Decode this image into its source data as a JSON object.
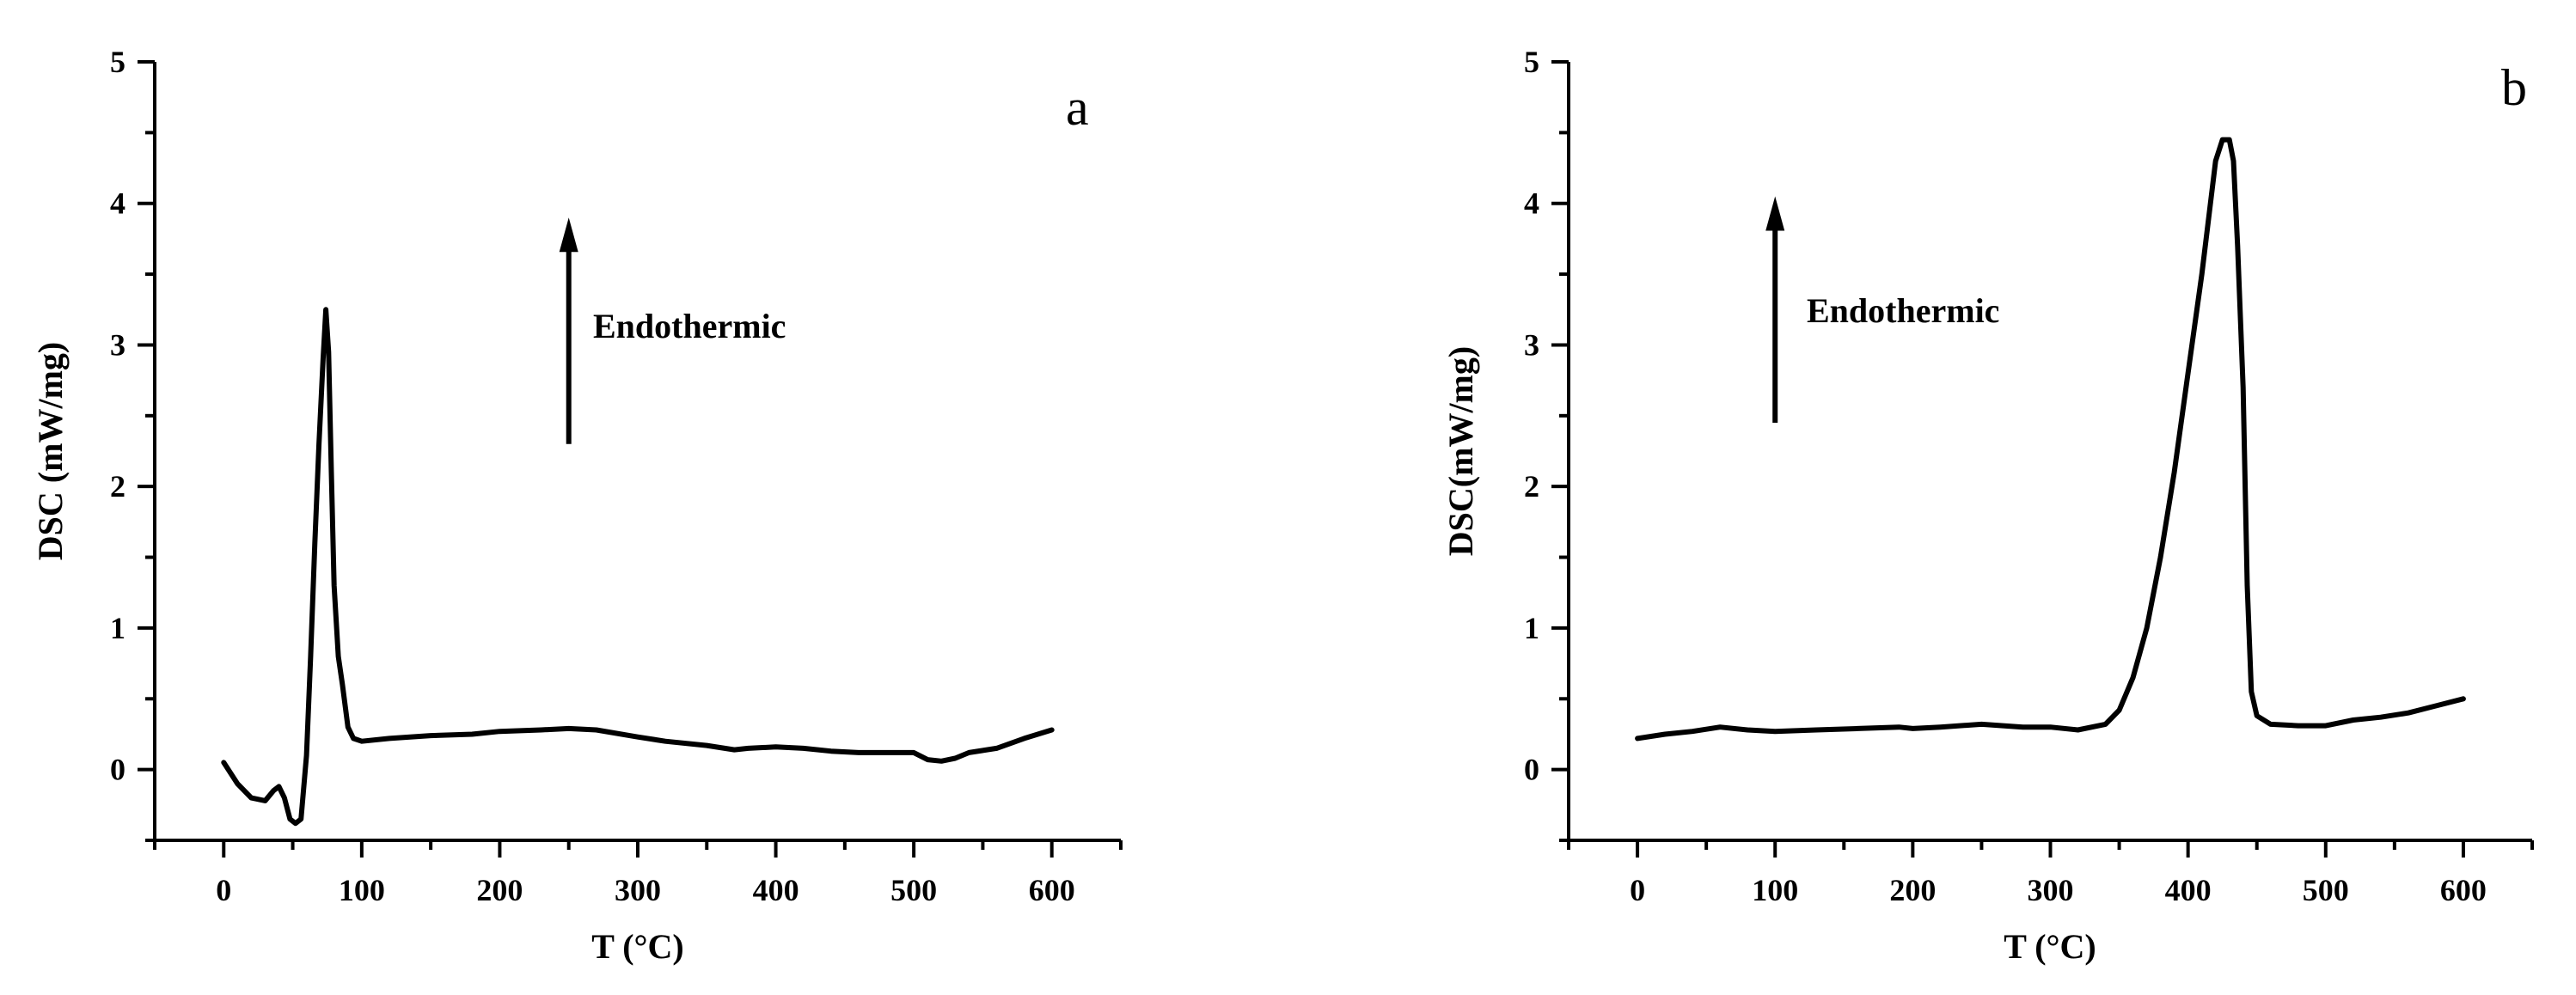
{
  "chart_data": [
    {
      "type": "line",
      "panel_label": "a",
      "xlabel": "T (°C)",
      "ylabel": "DSC (mW/mg)",
      "xlim": [
        -50,
        650
      ],
      "ylim": [
        -0.5,
        5
      ],
      "xticks": [
        0,
        100,
        200,
        300,
        400,
        500,
        600
      ],
      "yticks": [
        0,
        1,
        2,
        3,
        4,
        5
      ],
      "annotation": "Endothermic",
      "arrow": {
        "x": 250,
        "y_start": 2.3,
        "y_end": 3.9
      },
      "series": [
        {
          "x": [
            0,
            10,
            20,
            30,
            36,
            40,
            44,
            48,
            52,
            56,
            60,
            63,
            66,
            69,
            72,
            74,
            76,
            78,
            80,
            83,
            86,
            90,
            94,
            100,
            120,
            150,
            180,
            200,
            230,
            250,
            270,
            300,
            320,
            350,
            370,
            380,
            400,
            420,
            440,
            460,
            480,
            500,
            510,
            520,
            530,
            540,
            560,
            580,
            600
          ],
          "y": [
            0.05,
            -0.1,
            -0.2,
            -0.22,
            -0.15,
            -0.12,
            -0.2,
            -0.35,
            -0.38,
            -0.35,
            0.1,
            0.8,
            1.6,
            2.3,
            2.9,
            3.25,
            2.95,
            2.1,
            1.3,
            0.8,
            0.6,
            0.3,
            0.22,
            0.2,
            0.22,
            0.24,
            0.25,
            0.27,
            0.28,
            0.29,
            0.28,
            0.23,
            0.2,
            0.17,
            0.14,
            0.15,
            0.16,
            0.15,
            0.13,
            0.12,
            0.12,
            0.12,
            0.07,
            0.06,
            0.08,
            0.12,
            0.15,
            0.22,
            0.28
          ]
        }
      ]
    },
    {
      "type": "line",
      "panel_label": "b",
      "xlabel": "T (°C)",
      "ylabel": "DSC(mW/mg)",
      "xlim": [
        -50,
        650
      ],
      "ylim": [
        -0.5,
        5
      ],
      "xticks": [
        0,
        100,
        200,
        300,
        400,
        500,
        600
      ],
      "yticks": [
        0,
        1,
        2,
        3,
        4,
        5
      ],
      "annotation": "Endothermic",
      "arrow": {
        "x": 100,
        "y_start": 2.45,
        "y_end": 4.05
      },
      "series": [
        {
          "x": [
            0,
            20,
            40,
            60,
            80,
            100,
            130,
            160,
            190,
            200,
            220,
            250,
            280,
            300,
            320,
            340,
            350,
            360,
            370,
            380,
            390,
            400,
            410,
            415,
            420,
            425,
            430,
            433,
            436,
            440,
            443,
            446,
            450,
            460,
            480,
            500,
            520,
            540,
            560,
            580,
            600
          ],
          "y": [
            0.22,
            0.25,
            0.27,
            0.3,
            0.28,
            0.27,
            0.28,
            0.29,
            0.3,
            0.29,
            0.3,
            0.32,
            0.3,
            0.3,
            0.28,
            0.32,
            0.42,
            0.65,
            1.0,
            1.5,
            2.1,
            2.8,
            3.5,
            3.9,
            4.3,
            4.45,
            4.45,
            4.3,
            3.7,
            2.7,
            1.3,
            0.55,
            0.38,
            0.32,
            0.31,
            0.31,
            0.35,
            0.37,
            0.4,
            0.45,
            0.5
          ]
        }
      ]
    }
  ]
}
